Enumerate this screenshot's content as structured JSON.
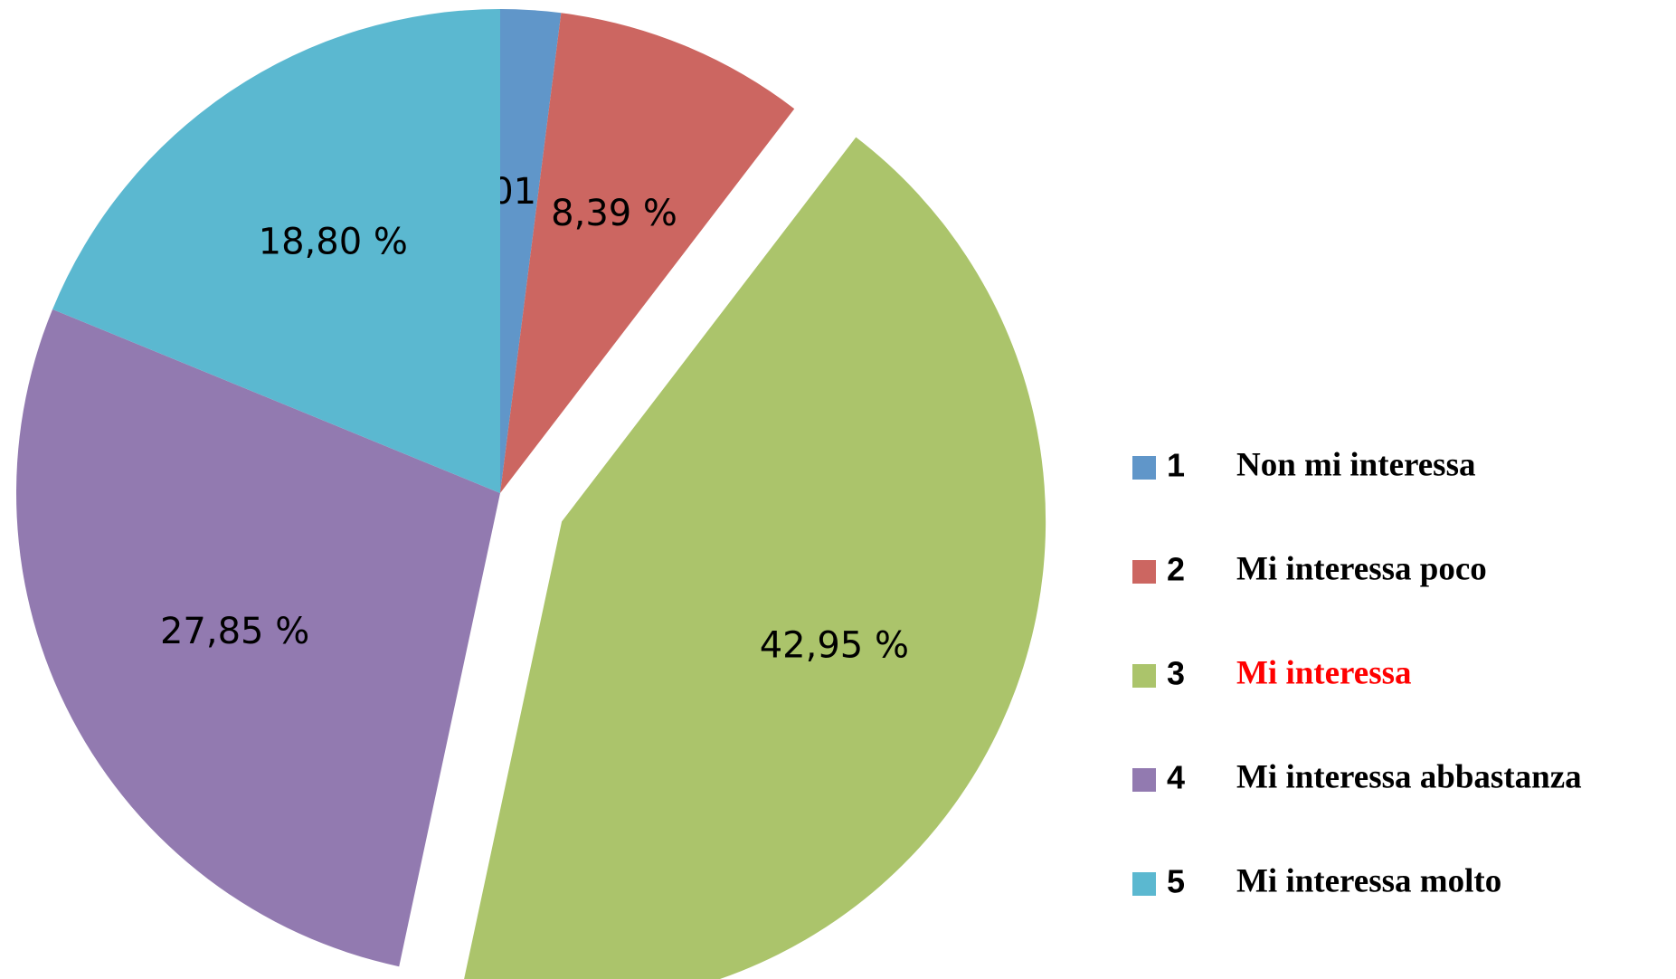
{
  "chart_data": {
    "type": "pie",
    "codes": [
      "1",
      "2",
      "3",
      "4",
      "5"
    ],
    "categories": [
      "Non mi interessa",
      "Mi interessa poco",
      "Mi interessa",
      "Mi interessa abbastanza",
      "Mi interessa molto"
    ],
    "values": [
      2.01,
      8.39,
      42.95,
      27.85,
      18.8
    ],
    "value_labels": [
      "2,01 %",
      "8,39 %",
      "42,95 %",
      "27,85 %",
      "18,80 %"
    ],
    "colors": [
      "#6096c9",
      "#cc6661",
      "#abc46b",
      "#927ab0",
      "#5bb8d0"
    ],
    "legend_text_colors": [
      "#000000",
      "#000000",
      "#ff0000",
      "#000000",
      "#000000"
    ],
    "exploded_index": 2,
    "legend": "right"
  }
}
